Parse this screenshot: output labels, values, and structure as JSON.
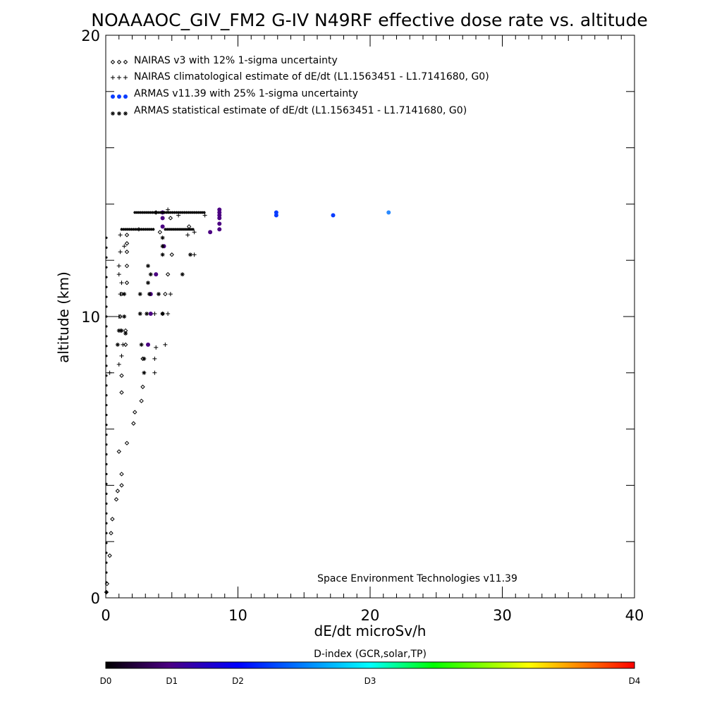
{
  "chart_data": {
    "type": "scatter",
    "title": "NOAAAOC_GIV_FM2 G-IV   N49RF  effective dose rate vs. altitude",
    "xlabel": "dE/dt microSv/h",
    "ylabel": "altitude (km)",
    "xlim": [
      0,
      40
    ],
    "ylim": [
      0,
      20
    ],
    "x_ticks": [
      "0",
      "10",
      "20",
      "30",
      "40"
    ],
    "y_ticks": [
      "0",
      "10",
      "20"
    ],
    "annotation": "Space Environment Technologies v11.39",
    "legend_position": "top-left",
    "series": [
      {
        "name": "NAIRAS v3 with 12% 1-sigma uncertainty",
        "marker": "diamond",
        "points": [
          [
            0.05,
            0.2
          ],
          [
            0.1,
            0.5
          ],
          [
            0.3,
            1.5
          ],
          [
            0.4,
            2.3
          ],
          [
            0.5,
            2.8
          ],
          [
            0.8,
            3.5
          ],
          [
            0.9,
            3.8
          ],
          [
            1.2,
            4.0
          ],
          [
            1.2,
            4.4
          ],
          [
            1.0,
            5.2
          ],
          [
            1.6,
            5.5
          ],
          [
            2.1,
            6.2
          ],
          [
            2.2,
            6.6
          ],
          [
            2.7,
            7.0
          ],
          [
            2.8,
            7.5
          ],
          [
            1.2,
            7.3
          ],
          [
            1.2,
            7.9
          ],
          [
            2.8,
            8.5
          ],
          [
            1.5,
            9.0
          ],
          [
            1.5,
            9.5
          ],
          [
            4.3,
            10.1
          ],
          [
            1.1,
            10.0
          ],
          [
            1.2,
            10.8
          ],
          [
            4.5,
            10.8
          ],
          [
            1.6,
            11.2
          ],
          [
            4.7,
            11.5
          ],
          [
            1.6,
            11.8
          ],
          [
            1.6,
            12.3
          ],
          [
            5.0,
            12.2
          ],
          [
            1.6,
            12.6
          ],
          [
            1.6,
            12.9
          ],
          [
            4.1,
            13.0
          ],
          [
            6.3,
            13.2
          ],
          [
            4.9,
            13.5
          ],
          [
            3.8,
            13.7
          ]
        ]
      },
      {
        "name": "NAIRAS climatological estimate of dE/dt (L1.1563451 - L1.7141680, G0)",
        "marker": "plus",
        "points": [
          [
            0.3,
            8.0
          ],
          [
            1.0,
            8.3
          ],
          [
            1.2,
            8.6
          ],
          [
            1.3,
            9.0
          ],
          [
            1.1,
            9.5
          ],
          [
            3.8,
            8.9
          ],
          [
            4.5,
            9.0
          ],
          [
            3.7,
            8.5
          ],
          [
            3.7,
            8.0
          ],
          [
            3.7,
            10.1
          ],
          [
            4.7,
            10.1
          ],
          [
            4.9,
            10.8
          ],
          [
            1.0,
            10.0
          ],
          [
            1.1,
            10.8
          ],
          [
            1.2,
            11.2
          ],
          [
            1.0,
            11.5
          ],
          [
            1.0,
            11.8
          ],
          [
            1.1,
            12.3
          ],
          [
            1.4,
            12.5
          ],
          [
            1.1,
            12.9
          ],
          [
            6.7,
            12.2
          ],
          [
            6.2,
            12.9
          ],
          [
            6.7,
            13.0
          ],
          [
            4.7,
            13.8
          ],
          [
            7.5,
            13.6
          ],
          [
            2.5,
            13.1
          ],
          [
            5.5,
            13.6
          ]
        ]
      },
      {
        "name": "ARMAS v11.39 with 25% 1-sigma uncertainty",
        "marker": "dot",
        "points": [
          [
            4.3,
            13.2
          ],
          [
            4.3,
            13.5
          ],
          [
            4.3,
            13.7
          ],
          [
            4.4,
            12.5
          ],
          [
            3.8,
            11.5
          ],
          [
            3.4,
            10.1
          ],
          [
            3.4,
            10.8
          ],
          [
            3.2,
            9.0
          ],
          [
            7.9,
            13.0
          ],
          [
            8.6,
            13.1
          ],
          [
            8.6,
            13.3
          ],
          [
            8.6,
            13.5
          ],
          [
            8.6,
            13.6
          ],
          [
            8.6,
            13.7
          ],
          [
            8.6,
            13.8
          ],
          [
            12.9,
            13.6
          ],
          [
            12.9,
            13.7
          ],
          [
            17.2,
            13.6
          ],
          [
            21.4,
            13.7
          ]
        ]
      },
      {
        "name": "ARMAS statistical estimate of dE/dt (L1.1563451 - L1.7141680, G0)",
        "marker": "star",
        "points": [
          [
            0.9,
            9.0
          ],
          [
            1.0,
            9.5
          ],
          [
            2.9,
            8.0
          ],
          [
            2.9,
            8.5
          ],
          [
            2.7,
            9.0
          ],
          [
            3.1,
            10.1
          ],
          [
            3.3,
            10.8
          ],
          [
            4.3,
            10.1
          ],
          [
            4.0,
            10.8
          ],
          [
            3.2,
            11.2
          ],
          [
            3.2,
            11.8
          ],
          [
            3.4,
            11.5
          ],
          [
            4.3,
            12.5
          ],
          [
            4.3,
            12.8
          ],
          [
            4.3,
            12.2
          ],
          [
            5.8,
            11.5
          ],
          [
            6.4,
            12.2
          ],
          [
            1.4,
            10.8
          ],
          [
            1.4,
            10.0
          ],
          [
            1.5,
            9.4
          ],
          [
            1.2,
            9.5
          ],
          [
            2.6,
            10.8
          ],
          [
            2.6,
            10.1
          ]
        ]
      }
    ],
    "colorbar": {
      "title": "D-index (GCR,solar,TP)",
      "labels": [
        "D0",
        "D1",
        "D2",
        "D3",
        "D4"
      ],
      "label_positions": [
        0,
        0.125,
        0.25,
        0.5,
        1
      ]
    },
    "colors": {
      "d_low": "#4b0082",
      "d_mid": "#0a3cff",
      "d_high": "#2a8aff"
    }
  }
}
